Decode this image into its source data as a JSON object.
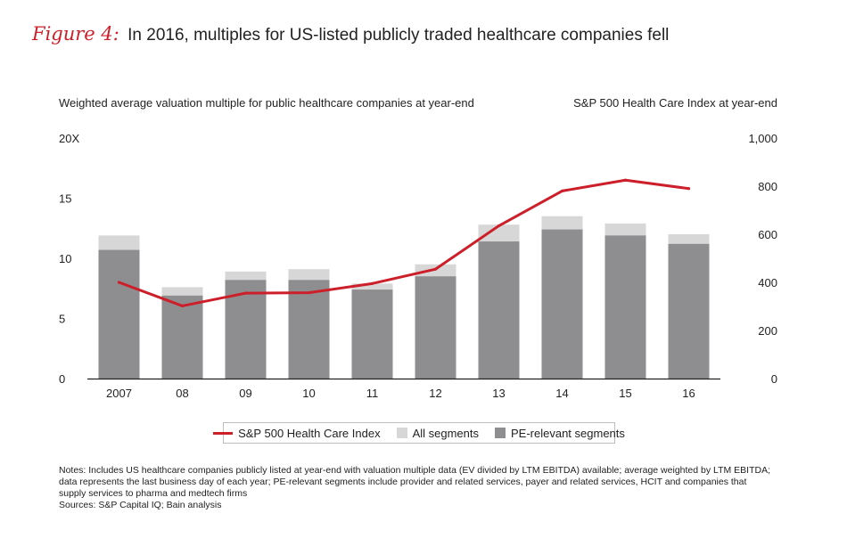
{
  "figure": {
    "label": "Figure 4:",
    "title": "In 2016, multiples for US-listed publicly traded healthcare companies fell"
  },
  "colors": {
    "accent": "#cc1f2a",
    "all_segments": "#d7d7d8",
    "pe_segments": "#8e8e90",
    "axis": "#222222"
  },
  "chart_data": {
    "type": "bar",
    "title": "In 2016, multiples for US-listed publicly traded healthcare companies fell",
    "ylabel": "Weighted average valuation multiple for public healthcare companies at year-end",
    "y2label": "S&P 500 Health Care Index at year-end",
    "categories": [
      "2007",
      "08",
      "09",
      "10",
      "11",
      "12",
      "13",
      "14",
      "15",
      "16"
    ],
    "ylim": [
      0,
      20
    ],
    "y_ticks": [
      "0",
      "5",
      "10",
      "15",
      "20X"
    ],
    "y2lim": [
      0,
      1000
    ],
    "y2_ticks": [
      "0",
      "200",
      "400",
      "600",
      "800",
      "1,000"
    ],
    "series": [
      {
        "name": "All segments",
        "kind": "bar",
        "axis": "left",
        "values": [
          11.9,
          7.6,
          8.9,
          9.1,
          7.9,
          9.5,
          12.8,
          13.5,
          12.9,
          12.0
        ]
      },
      {
        "name": "PE-relevant segments",
        "kind": "bar",
        "axis": "left",
        "values": [
          10.7,
          6.9,
          8.2,
          8.2,
          7.4,
          8.5,
          11.4,
          12.4,
          11.9,
          11.2
        ]
      },
      {
        "name": "S&P 500 Health Care Index",
        "kind": "line",
        "axis": "right",
        "values": [
          400,
          302,
          355,
          357,
          395,
          455,
          635,
          780,
          825,
          790
        ]
      }
    ],
    "legend": [
      "S&P 500 Health Care Index",
      "All segments",
      "PE-relevant segments"
    ],
    "grid": false
  },
  "notes": {
    "line1": "Notes: Includes US healthcare companies publicly listed at year-end with valuation multiple data (EV divided by LTM EBITDA) available; average weighted by LTM EBITDA; data represents the last business day of each year; PE-relevant segments include provider and related services, payer and related services, HCIT and companies that supply services to pharma and medtech firms",
    "sources": "Sources: S&P Capital IQ; Bain analysis"
  }
}
